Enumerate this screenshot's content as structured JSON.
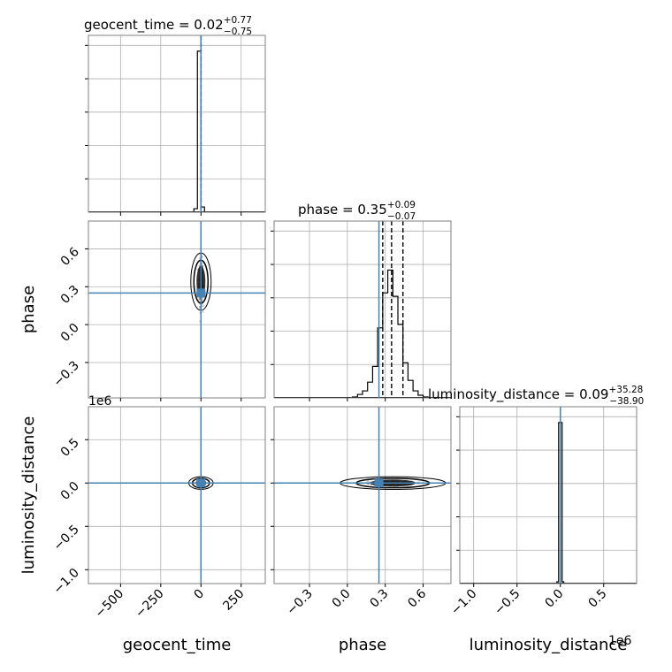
{
  "chart_data": {
    "type": "corner",
    "parameters": [
      "geocent_time",
      "phase",
      "luminosity_distance"
    ],
    "truth_color": "#4682b4",
    "titles": [
      {
        "param": "geocent_time",
        "name": "geocent_time",
        "median": "0.02",
        "plus": "+0.77",
        "minus": "−0.75"
      },
      {
        "param": "phase",
        "name": "phase",
        "median": "0.35",
        "plus": "+0.09",
        "minus": "−0.07"
      },
      {
        "param": "luminosity_distance",
        "name": "luminosity_distance",
        "median": "0.09",
        "plus": "+35.28",
        "minus": "−38.90"
      }
    ],
    "axis_labels": {
      "x": [
        "geocent_time",
        "phase",
        "luminosity_distance"
      ],
      "y": [
        "phase",
        "luminosity_distance"
      ]
    },
    "offset_labels": {
      "luminosity_distance_y": "1e6",
      "luminosity_distance_x": "1e6"
    },
    "ranges": {
      "geocent_time": [
        -700,
        400
      ],
      "phase": [
        -0.58,
        0.82
      ],
      "luminosity_distance": [
        -1160000,
        880000
      ]
    },
    "ticks": {
      "geocent_time": {
        "values": [
          -500,
          -250,
          0,
          250
        ],
        "labels": [
          "−500",
          "−250",
          "0",
          "250"
        ]
      },
      "phase": {
        "values": [
          -0.3,
          0.0,
          0.3,
          0.6
        ],
        "labels": [
          "−0.3",
          "0.0",
          "0.3",
          "0.6"
        ]
      },
      "luminosity_distance": {
        "values": [
          -1000000,
          -500000,
          0,
          500000
        ],
        "labels": [
          "−1.0",
          "−0.5",
          "0.0",
          "0.5"
        ]
      }
    },
    "truths": {
      "geocent_time": 0,
      "phase": 0.25,
      "luminosity_distance": 0
    },
    "quantiles": {
      "geocent_time": [
        -0.73,
        0.02,
        0.79
      ],
      "phase": [
        0.28,
        0.35,
        0.44
      ],
      "luminosity_distance": [
        -38.8,
        0.09,
        35.37
      ]
    },
    "histograms": {
      "geocent_time": {
        "edges": [
          -88,
          -66,
          -44,
          -22,
          0,
          22,
          44,
          66
        ],
        "counts": [
          0.0,
          0.002,
          0.02,
          0.92,
          0.03,
          0.002,
          0.0
        ]
      },
      "phase": {
        "edges": [
          -0.04,
          0.0,
          0.04,
          0.08,
          0.12,
          0.16,
          0.2,
          0.24,
          0.28,
          0.32,
          0.36,
          0.4,
          0.44,
          0.48,
          0.52,
          0.56,
          0.6,
          0.64,
          0.68
        ],
        "counts": [
          0.0,
          0.002,
          0.005,
          0.02,
          0.04,
          0.09,
          0.18,
          0.4,
          0.6,
          0.73,
          0.58,
          0.42,
          0.2,
          0.1,
          0.04,
          0.015,
          0.005,
          0.0
        ]
      },
      "luminosity_distance": {
        "edges": [
          -60000,
          -40000,
          -20000,
          0,
          20000,
          40000,
          60000
        ],
        "counts": [
          0.0,
          0.01,
          0.92,
          0.92,
          0.01,
          0.0
        ]
      }
    },
    "grid": true
  }
}
